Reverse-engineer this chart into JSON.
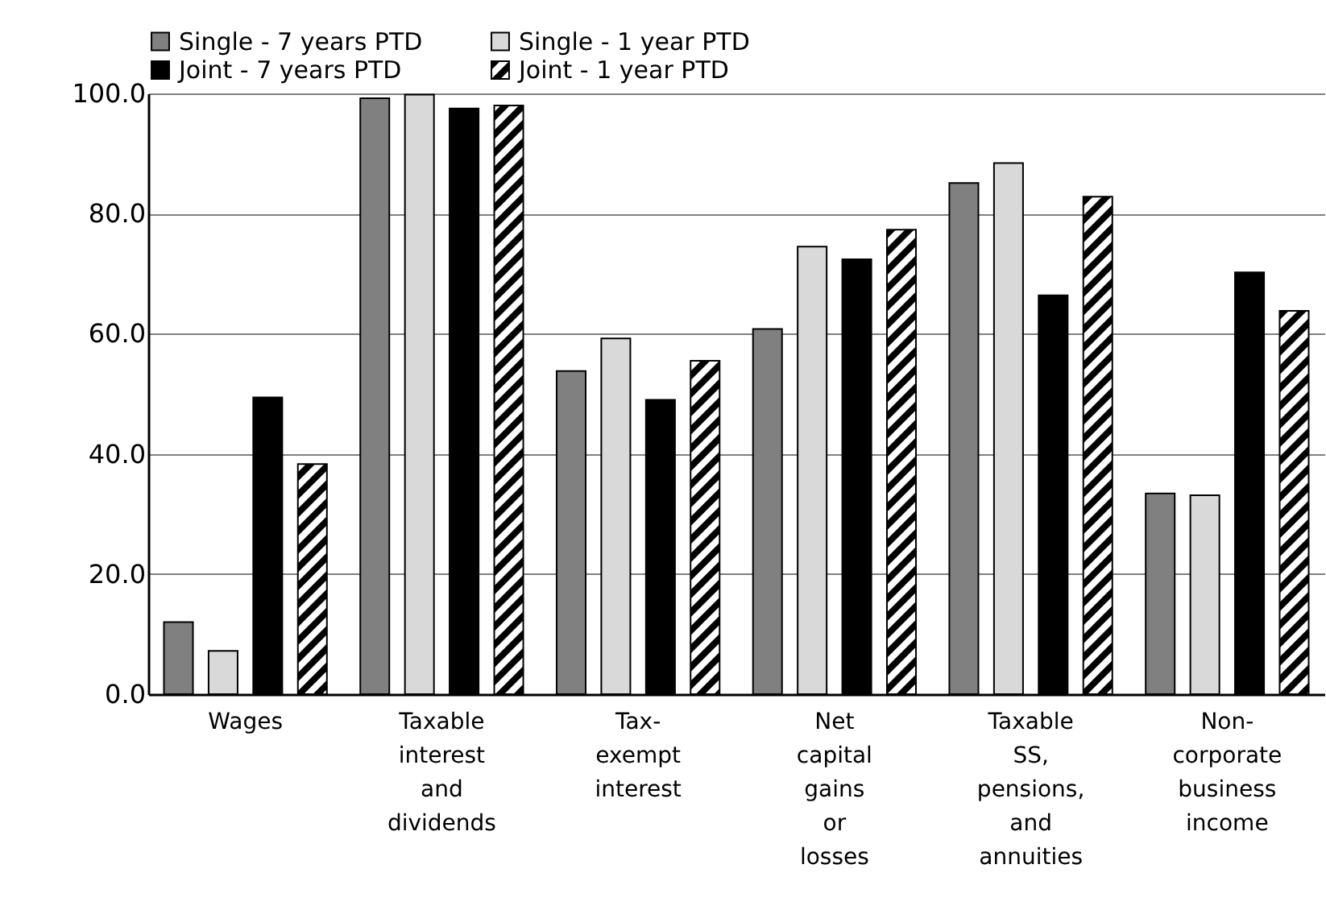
{
  "chart_data": {
    "type": "bar",
    "categories": [
      "Wages",
      "Taxable interest and dividends",
      "Tax-exempt interest",
      "Net capital gains or losses",
      "Taxable SS, pensions, and annuities",
      "Non-corporate business income"
    ],
    "series": [
      {
        "name": "Single - 7 years PTD",
        "color": "#808080",
        "values": [
          12.0,
          99.2,
          53.8,
          60.8,
          85.1,
          33.4
        ]
      },
      {
        "name": "Single - 1 year PTD",
        "color": "#d9d9d9",
        "values": [
          7.2,
          99.8,
          59.2,
          74.5,
          88.4,
          33.1
        ]
      },
      {
        "name": "Joint - 7 years PTD",
        "color": "#000000",
        "values": [
          49.4,
          97.5,
          49.0,
          72.4,
          66.4,
          70.2
        ]
      },
      {
        "name": "Joint - 1 year PTD",
        "color": "#000000",
        "values": [
          38.3,
          98.0,
          55.5,
          77.3,
          82.8,
          63.8
        ]
      }
    ],
    "ylim": [
      0,
      100
    ],
    "yticks": [
      {
        "value": 0,
        "label": "0.0"
      },
      {
        "value": 20,
        "label": "20.0"
      },
      {
        "value": 40,
        "label": "40.0"
      },
      {
        "value": 60,
        "label": "60.0"
      },
      {
        "value": 80,
        "label": "80.0"
      },
      {
        "value": 100,
        "label": "100.0"
      }
    ],
    "grid": "y",
    "legend": "top"
  }
}
